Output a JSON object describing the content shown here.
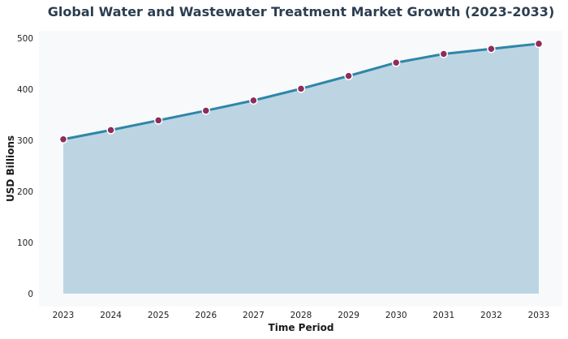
{
  "chart_data": {
    "type": "area",
    "title": "Global Water and Wastewater Treatment Market Growth (2023-2033)",
    "xlabel": "Time Period",
    "ylabel": "USD Billions",
    "x": [
      "2023",
      "2024",
      "2025",
      "2026",
      "2027",
      "2028",
      "2029",
      "2030",
      "2031",
      "2032",
      "2033"
    ],
    "series": [
      {
        "values": [
          302,
          320,
          339,
          358,
          378,
          401,
          426,
          452,
          469,
          479,
          489
        ]
      }
    ],
    "ylim": [
      -25,
      510
    ],
    "yticks": [
      0,
      100,
      200,
      300,
      400,
      500
    ],
    "grid": false,
    "legend": "none",
    "colors": {
      "line": "#2e86a8",
      "fill": "#bdd5e2",
      "marker": "#8e2c5a",
      "marker_edge": "#ffffff",
      "plot_bg": "#f7f9fb"
    }
  }
}
